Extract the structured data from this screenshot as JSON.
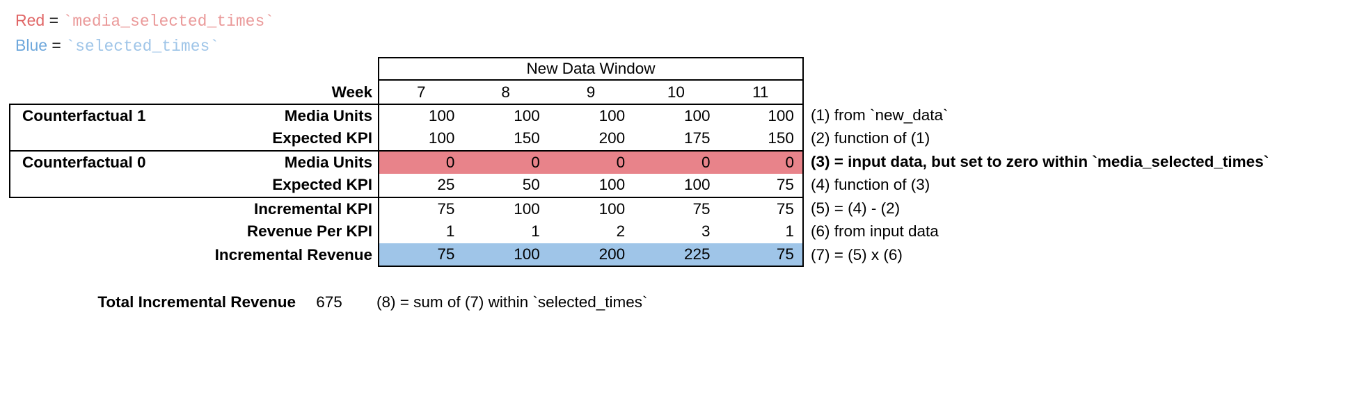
{
  "legend": {
    "red": {
      "label": "Red",
      "equals": " = ",
      "code": "`media_selected_times`"
    },
    "blue": {
      "label": "Blue",
      "equals": " = ",
      "code": "`selected_times`"
    }
  },
  "table": {
    "window_header": "New Data Window",
    "week_label": "Week",
    "weeks": [
      "7",
      "8",
      "9",
      "10",
      "11"
    ],
    "rows": [
      {
        "group": "Counterfactual 1",
        "label": "Media Units",
        "values": [
          "100",
          "100",
          "100",
          "100",
          "100"
        ],
        "note": "(1) from `new_data`"
      },
      {
        "group": "",
        "label": "Expected KPI",
        "values": [
          "100",
          "150",
          "200",
          "175",
          "150"
        ],
        "note": "(2) function of (1)"
      },
      {
        "group": "Counterfactual 0",
        "label": "Media Units",
        "values": [
          "0",
          "0",
          "0",
          "0",
          "0"
        ],
        "note": "(3) = input data, but set to zero within `media_selected_times`",
        "highlight": "red",
        "note_style": "bold"
      },
      {
        "group": "",
        "label": "Expected KPI",
        "values": [
          "25",
          "50",
          "100",
          "100",
          "75"
        ],
        "note": "(4) function of (3)"
      },
      {
        "group": "",
        "label": "Incremental KPI",
        "values": [
          "75",
          "100",
          "100",
          "75",
          "75"
        ],
        "note": "(5) = (4) - (2)"
      },
      {
        "group": "",
        "label": "Revenue Per KPI",
        "values": [
          "1",
          "1",
          "2",
          "3",
          "1"
        ],
        "note": "(6) from input data"
      },
      {
        "group": "",
        "label": "Incremental Revenue",
        "values": [
          "75",
          "100",
          "200",
          "225",
          "75"
        ],
        "note": "(7) = (5) x (6)",
        "highlight": "blue"
      }
    ]
  },
  "total": {
    "label": "Total Incremental Revenue",
    "value": "675",
    "note": "(8) = sum of (7) within `selected_times`"
  },
  "colors": {
    "red_text": "#e06666",
    "red_code": "#ea9999",
    "blue_text": "#6fa8dc",
    "blue_code": "#9fc5e8",
    "red_highlight": "#e8838a",
    "blue_highlight": "#9fc5e8"
  }
}
